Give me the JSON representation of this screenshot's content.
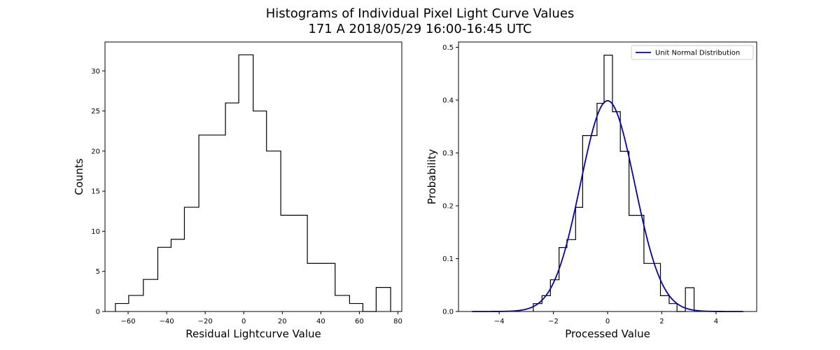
{
  "figure": {
    "title_line1": "Histograms of Individual Pixel Light Curve Values",
    "title_line2": "171 A 2018/05/29 16:00-16:45 UTC"
  },
  "chart_data": [
    {
      "type": "histogram",
      "xlabel": "Residual Lightcurve Value",
      "ylabel": "Counts",
      "xlim": [
        -72,
        82
      ],
      "ylim": [
        0,
        33.6
      ],
      "xticks": [
        -60,
        -40,
        -20,
        0,
        20,
        40,
        60,
        80
      ],
      "yticks": [
        0,
        5,
        10,
        15,
        20,
        25,
        30
      ],
      "bins": [
        {
          "x0": -66.6,
          "x1": -59.7,
          "value": 1
        },
        {
          "x0": -59.7,
          "x1": -52.1,
          "value": 2
        },
        {
          "x0": -52.1,
          "x1": -44.6,
          "value": 4
        },
        {
          "x0": -44.6,
          "x1": -37.7,
          "value": 8
        },
        {
          "x0": -37.7,
          "x1": -30.8,
          "value": 9
        },
        {
          "x0": -30.8,
          "x1": -23.3,
          "value": 13
        },
        {
          "x0": -23.3,
          "x1": -16.4,
          "value": 22
        },
        {
          "x0": -16.4,
          "x1": -9.5,
          "value": 22
        },
        {
          "x0": -9.5,
          "x1": -2.6,
          "value": 26
        },
        {
          "x0": -2.6,
          "x1": 4.9,
          "value": 32
        },
        {
          "x0": 4.9,
          "x1": 11.8,
          "value": 25
        },
        {
          "x0": 11.8,
          "x1": 19.2,
          "value": 20
        },
        {
          "x0": 19.2,
          "x1": 26.1,
          "value": 12
        },
        {
          "x0": 26.1,
          "x1": 33.0,
          "value": 12
        },
        {
          "x0": 33.0,
          "x1": 40.5,
          "value": 6
        },
        {
          "x0": 40.5,
          "x1": 47.4,
          "value": 6
        },
        {
          "x0": 47.4,
          "x1": 54.9,
          "value": 2
        },
        {
          "x0": 54.9,
          "x1": 61.8,
          "value": 1
        },
        {
          "x0": 61.8,
          "x1": 68.7,
          "value": 0
        },
        {
          "x0": 68.7,
          "x1": 76.2,
          "value": 3
        }
      ]
    },
    {
      "type": "histogram",
      "xlabel": "Processed Value",
      "ylabel": "Probability",
      "xlim": [
        -5.5,
        5.5
      ],
      "ylim": [
        0,
        0.51
      ],
      "xticks": [
        -4,
        -2,
        0,
        2,
        4
      ],
      "yticks": [
        0.0,
        0.1,
        0.2,
        0.3,
        0.4,
        0.5
      ],
      "legend": {
        "placement": "top-right",
        "entries": [
          "Unit Normal Distribution"
        ]
      },
      "curve": {
        "name": "Unit Normal Distribution",
        "color": "#0000cc",
        "x_min": -5,
        "x_max": 5
      },
      "bins": [
        {
          "x0": -2.74,
          "x1": -2.42,
          "value": 0.015
        },
        {
          "x0": -2.42,
          "x1": -2.11,
          "value": 0.03
        },
        {
          "x0": -2.11,
          "x1": -1.79,
          "value": 0.06
        },
        {
          "x0": -1.79,
          "x1": -1.5,
          "value": 0.121
        },
        {
          "x0": -1.5,
          "x1": -1.18,
          "value": 0.136
        },
        {
          "x0": -1.18,
          "x1": -0.92,
          "value": 0.197
        },
        {
          "x0": -0.92,
          "x1": -0.39,
          "value": 0.333
        },
        {
          "x0": -0.39,
          "x1": -0.13,
          "value": 0.394
        },
        {
          "x0": -0.13,
          "x1": 0.18,
          "value": 0.485
        },
        {
          "x0": 0.18,
          "x1": 0.47,
          "value": 0.378
        },
        {
          "x0": 0.47,
          "x1": 0.79,
          "value": 0.303
        },
        {
          "x0": 0.79,
          "x1": 1.34,
          "value": 0.182
        },
        {
          "x0": 1.34,
          "x1": 1.95,
          "value": 0.091
        },
        {
          "x0": 1.95,
          "x1": 2.27,
          "value": 0.03
        },
        {
          "x0": 2.27,
          "x1": 2.56,
          "value": 0.015
        },
        {
          "x0": 2.56,
          "x1": 2.87,
          "value": 0.0
        },
        {
          "x0": 2.87,
          "x1": 3.19,
          "value": 0.045
        }
      ]
    }
  ]
}
